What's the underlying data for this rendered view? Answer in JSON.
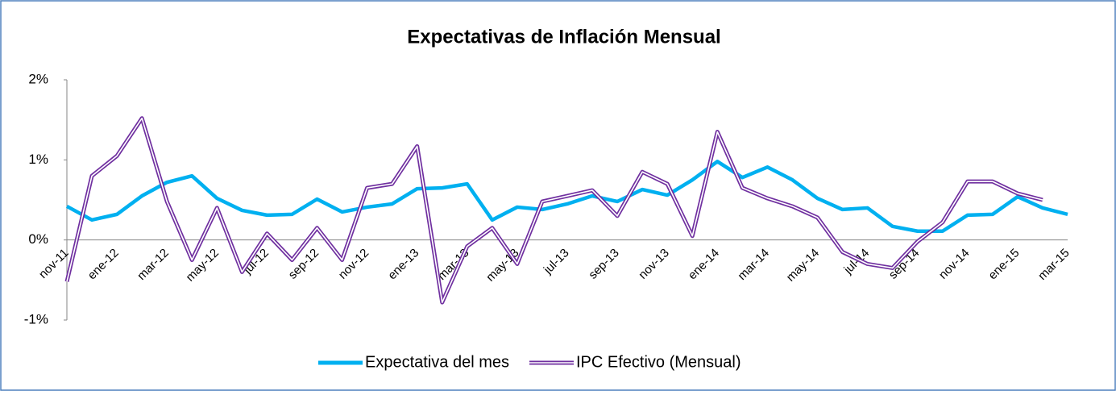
{
  "chart_data": {
    "type": "line",
    "title": "Expectativas de Inflación Mensual",
    "categories": [
      "nov-11",
      null,
      "ene-12",
      null,
      "mar-12",
      null,
      "may-12",
      null,
      "jul-12",
      null,
      "sep-12",
      null,
      "nov-12",
      null,
      "ene-13",
      null,
      "mar-13",
      null,
      "may-13",
      null,
      "jul-13",
      null,
      "sep-13",
      null,
      "nov-13",
      null,
      "ene-14",
      null,
      "mar-14",
      null,
      "may-14",
      null,
      "jul-14",
      null,
      "sep-14",
      null,
      "nov-14",
      null,
      "ene-15",
      null,
      "mar-15"
    ],
    "series": [
      {
        "name": "Expectativa del mes",
        "color": "#00b0f0",
        "values": [
          0.42,
          0.25,
          0.32,
          0.55,
          0.72,
          0.8,
          0.52,
          0.37,
          0.31,
          0.32,
          0.51,
          0.35,
          0.41,
          0.45,
          0.64,
          0.65,
          0.7,
          0.25,
          0.41,
          0.38,
          0.45,
          0.55,
          0.48,
          0.63,
          0.56,
          0.75,
          0.98,
          0.78,
          0.91,
          0.75,
          0.52,
          0.38,
          0.4,
          0.17,
          0.11,
          0.11,
          0.31,
          0.32,
          0.54,
          0.4,
          0.32
        ]
      },
      {
        "name": "IPC Efectivo (Mensual)",
        "color": "#7030a0",
        "values": [
          -0.52,
          0.8,
          1.05,
          1.52,
          0.48,
          -0.25,
          0.4,
          -0.4,
          0.08,
          -0.25,
          0.15,
          -0.25,
          0.65,
          0.7,
          1.17,
          -0.78,
          -0.08,
          0.15,
          -0.3,
          0.48,
          0.55,
          0.62,
          0.3,
          0.85,
          0.7,
          0.05,
          1.35,
          0.65,
          0.52,
          0.42,
          0.28,
          -0.15,
          -0.3,
          -0.35,
          -0.02,
          0.22,
          0.73,
          0.73,
          0.58,
          0.5,
          null
        ]
      }
    ],
    "ylim": [
      -1,
      2
    ],
    "yticks": [
      {
        "value": -1,
        "label": "-1%"
      },
      {
        "value": 0,
        "label": "0%"
      },
      {
        "value": 1,
        "label": "1%"
      },
      {
        "value": 2,
        "label": "2%"
      }
    ],
    "legend": "bottom"
  }
}
